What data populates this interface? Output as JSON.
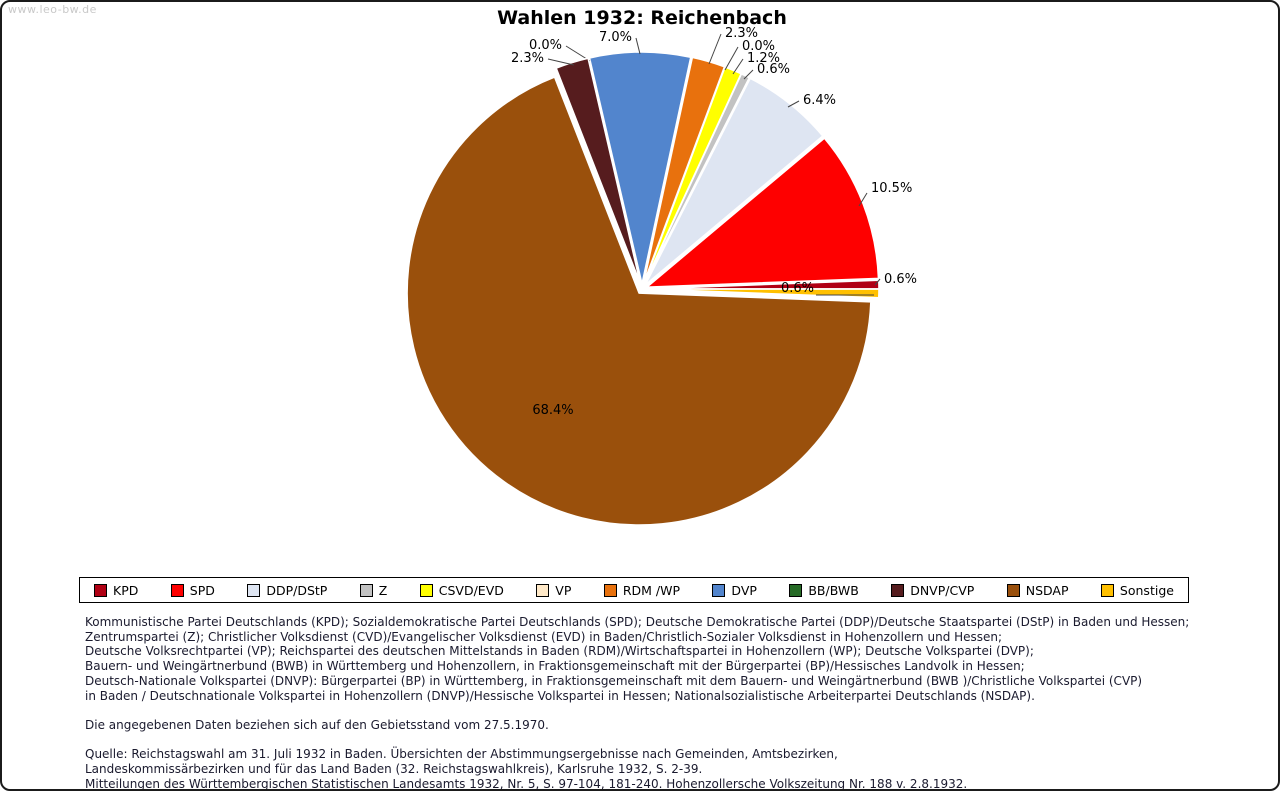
{
  "watermark": "www.leo-bw.de",
  "title": "Wahlen 1932: Reichenbach",
  "chart_data": {
    "type": "pie",
    "title": "Wahlen 1932: Reichenbach",
    "legend_position": "bottom",
    "value_suffix": "%",
    "slices": [
      {
        "label": "KPD",
        "value": 0.6,
        "color": "#b00014"
      },
      {
        "label": "SPD",
        "value": 10.5,
        "color": "#fe0000"
      },
      {
        "label": "DDP/DStP",
        "value": 6.4,
        "color": "#dee5f2"
      },
      {
        "label": "Z",
        "value": 0.6,
        "color": "#c2c2c2"
      },
      {
        "label": "CSVD/EVD",
        "value": 1.2,
        "color": "#ffff00"
      },
      {
        "label": "VP",
        "value": 0.0,
        "color": "#ffe9c8"
      },
      {
        "label": "RDM /WP",
        "value": 2.3,
        "color": "#e8710d"
      },
      {
        "label": "DVP",
        "value": 7.0,
        "color": "#5285cd"
      },
      {
        "label": "BB/BWB",
        "value": 0.0,
        "color": "#266b26"
      },
      {
        "label": "DNVP/CVP",
        "value": 2.3,
        "color": "#561c1e"
      },
      {
        "label": "NSDAP",
        "value": 68.4,
        "color": "#9a500c"
      },
      {
        "label": "Sonstige",
        "value": 0.6,
        "color": "#ffc000"
      }
    ]
  },
  "notes": {
    "party_descriptions": [
      "Kommunistische Partei Deutschlands (KPD); Sozialdemokratische Partei Deutschlands (SPD); Deutsche Demokratische Partei (DDP)/Deutsche Staatspartei (DStP) in Baden und Hessen;",
      "Zentrumspartei (Z); Christlicher Volksdienst (CVD)/Evangelischer Volksdienst (EVD) in Baden/Christlich-Sozialer Volksdienst in Hohenzollern und Hessen;",
      "Deutsche Volksrechtpartei (VP); Reichspartei des deutschen Mittelstands in Baden (RDM)/Wirtschaftspartei in Hohenzollern (WP); Deutsche Volkspartei (DVP);",
      "Bauern- und Weingärtnerbund (BWB) in Württemberg und Hohenzollern, in Fraktionsgemeinschaft mit der Bürgerpartei (BP)/Hessisches Landvolk in Hessen;",
      "Deutsch-Nationale Volkspartei (DNVP): Bürgerpartei (BP) in Württemberg, in Fraktionsgemeinschaft mit dem Bauern- und Weingärtnerbund (BWB )/Christliche Volkspartei (CVP)",
      "in Baden / Deutschnationale Volkspartei in Hohenzollern (DNVP)/Hessische Volkspartei in Hessen; Nationalsozialistische Arbeiterpartei Deutschlands (NSDAP)."
    ],
    "territorial_note": "Die angegebenen Daten beziehen sich auf den Gebietsstand vom 27.5.1970.",
    "source_lines": [
      "Quelle: Reichstagswahl am 31. Juli 1932 in Baden. Übersichten der Abstimmungsergebnisse nach Gemeinden, Amtsbezirken,",
      "Landeskommissärbezirken und für das Land Baden (32. Reichstagswahlkreis), Karlsruhe 1932, S. 2-39.",
      "Mitteilungen des Württembergischen Statistischen Landesamts 1932, Nr. 5, S. 97-104, 181-240. Hohenzollersche Volkszeitung Nr. 188 v. 2.8.1932."
    ]
  }
}
